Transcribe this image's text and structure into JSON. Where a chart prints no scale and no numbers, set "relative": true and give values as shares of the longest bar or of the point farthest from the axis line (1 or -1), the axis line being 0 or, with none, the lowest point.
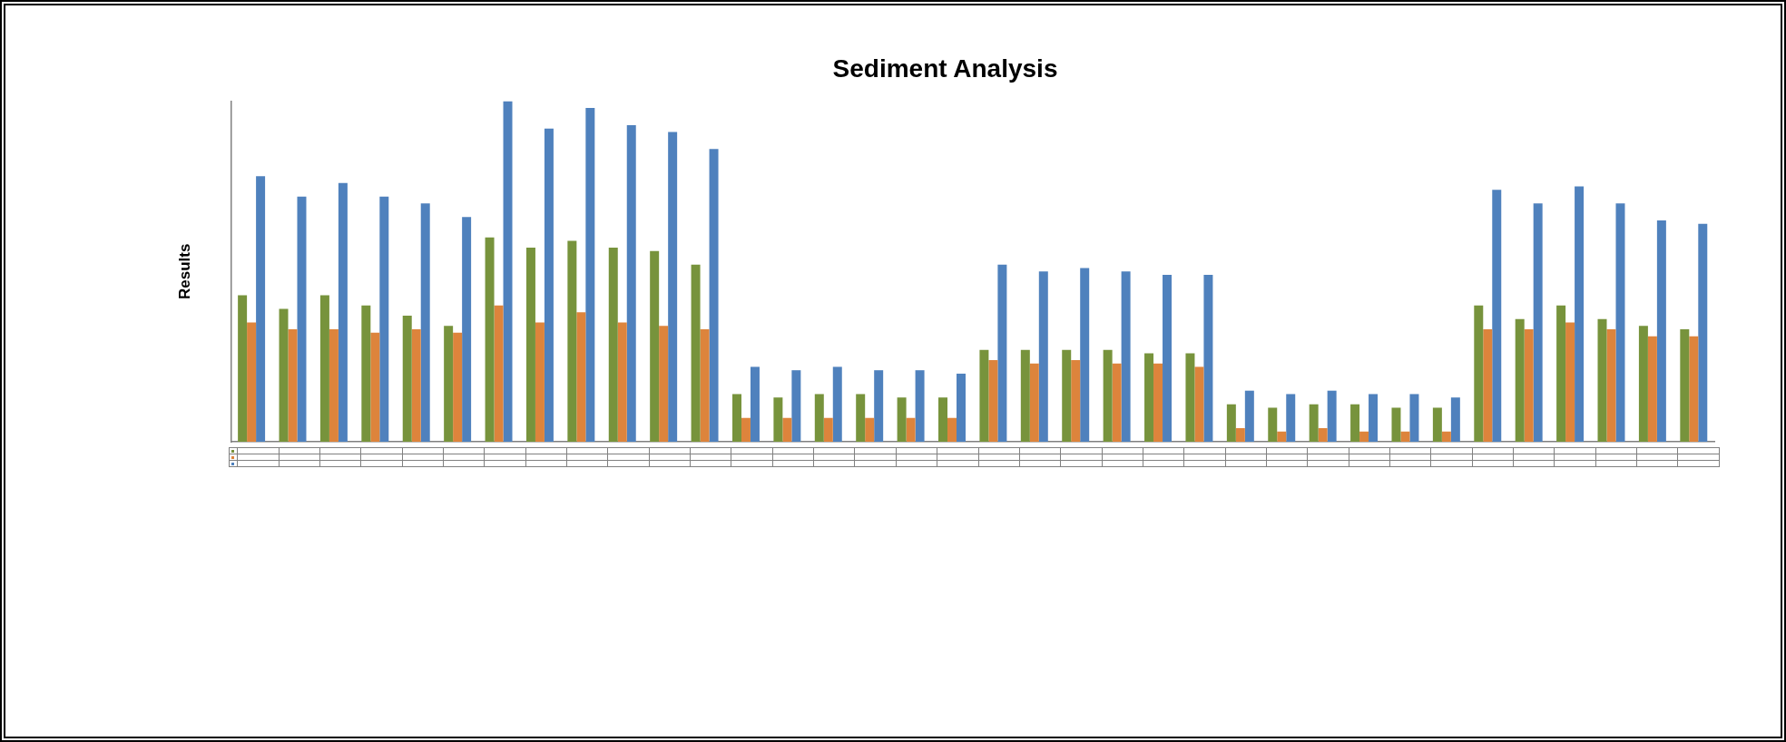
{
  "chart_data": {
    "type": "bar",
    "title": "Sediment Analysis",
    "ylabel": "Results",
    "relative": true,
    "legend": false,
    "grid": false,
    "categories": [
      null,
      null,
      null,
      null,
      null,
      null,
      null,
      null,
      null,
      null,
      null,
      null,
      null,
      null,
      null,
      null,
      null,
      null,
      null,
      null,
      null,
      null,
      null,
      null,
      null,
      null,
      null,
      null,
      null,
      null,
      null,
      null,
      null,
      null,
      null,
      null
    ],
    "series": [
      {
        "color": "#77933c",
        "values": [
          0.43,
          0.39,
          0.43,
          0.4,
          0.37,
          0.34,
          0.6,
          0.57,
          0.59,
          0.57,
          0.56,
          0.52,
          0.14,
          0.13,
          0.14,
          0.14,
          0.13,
          0.13,
          0.27,
          0.27,
          0.27,
          0.27,
          0.26,
          0.26,
          0.11,
          0.1,
          0.11,
          0.11,
          0.1,
          0.1,
          0.4,
          0.36,
          0.4,
          0.36,
          0.34,
          0.33
        ]
      },
      {
        "color": "#dd843c",
        "values": [
          0.35,
          0.33,
          0.33,
          0.32,
          0.33,
          0.32,
          0.4,
          0.35,
          0.38,
          0.35,
          0.34,
          0.33,
          0.07,
          0.07,
          0.07,
          0.07,
          0.07,
          0.07,
          0.24,
          0.23,
          0.24,
          0.23,
          0.23,
          0.22,
          0.04,
          0.03,
          0.04,
          0.03,
          0.03,
          0.03,
          0.33,
          0.33,
          0.35,
          0.33,
          0.31,
          0.31
        ]
      },
      {
        "color": "#4f81bd",
        "values": [
          0.78,
          0.72,
          0.76,
          0.72,
          0.7,
          0.66,
          1.0,
          0.92,
          0.98,
          0.93,
          0.91,
          0.86,
          0.22,
          0.21,
          0.22,
          0.21,
          0.21,
          0.2,
          0.52,
          0.5,
          0.51,
          0.5,
          0.49,
          0.49,
          0.15,
          0.14,
          0.15,
          0.14,
          0.14,
          0.13,
          0.74,
          0.7,
          0.75,
          0.7,
          0.65,
          0.64
        ]
      }
    ]
  }
}
